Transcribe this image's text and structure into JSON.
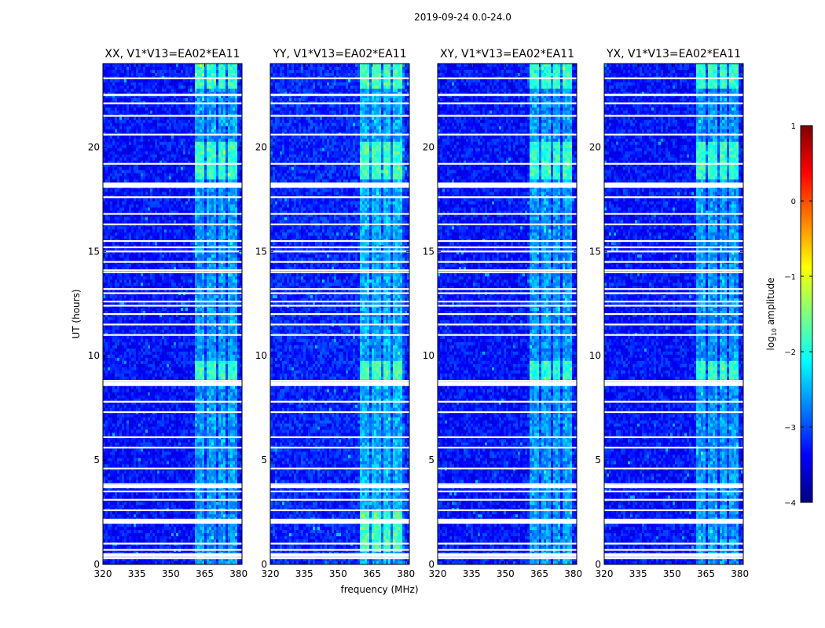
{
  "figure_title": "2019-09-24 0.0-24.0",
  "shared_xlabel": "frequency (MHz)",
  "shared_ylabel": "UT (hours)",
  "colorbar": {
    "label_text": "log10 amplitude",
    "label_prefix": "log",
    "label_subscript": "10",
    "label_suffix": " amplitude",
    "range": [
      -4,
      1
    ],
    "ticks": [
      1,
      0,
      -1,
      -2,
      -3,
      -4
    ],
    "tick_labels": [
      "1",
      "0",
      "−1",
      "−2",
      "−3",
      "−4"
    ],
    "colormap": "jet",
    "colormap_stops": [
      "#00007f",
      "#0000ff",
      "#007fff",
      "#00ffff",
      "#7fff7f",
      "#ffff00",
      "#ff7f00",
      "#ff0000",
      "#7f0000"
    ]
  },
  "colors": {
    "background": "#00007f",
    "baseline": "#1a3cff",
    "rfi_band": "#3fd0ff",
    "strong_rfi": "#8cff80",
    "flagged": "#ffffff"
  },
  "chart_data": [
    {
      "type": "heatmap",
      "title": "XX, V1*V13=EA02*EA11",
      "xlabel": "",
      "ylabel": "UT (hours)",
      "xlim": [
        320,
        381.5
      ],
      "ylim": [
        0,
        24
      ],
      "xticks": [
        320,
        335,
        350,
        365,
        380
      ],
      "yticks": [
        0,
        5,
        10,
        15,
        20
      ],
      "tick_labels_x": [
        "320",
        "335",
        "350",
        "365",
        "380"
      ],
      "tick_labels_y": [
        "0",
        "5",
        "10",
        "15",
        "20"
      ],
      "value_range_log10": [
        -4,
        1
      ],
      "typical_log10_amplitude": -3.3,
      "rfi_band_mhz": [
        361,
        379
      ],
      "strong_rfi_hours": [
        [
          8.8,
          9.8
        ],
        [
          18.5,
          20.2
        ],
        [
          22.8,
          24
        ]
      ],
      "flagged_hours": [
        0.3,
        0.5,
        0.7,
        1.0,
        2.0,
        2.15,
        2.6,
        3.1,
        3.5,
        3.75,
        3.85,
        4.6,
        5.6,
        6.1,
        7.3,
        7.8,
        8.6,
        8.7,
        8.8,
        11.0,
        11.5,
        12.0,
        12.4,
        12.6,
        13.0,
        13.2,
        14.0,
        14.1,
        14.5,
        15.0,
        15.2,
        15.5,
        16.3,
        16.8,
        17.6,
        18.1,
        18.25,
        19.2,
        20.6,
        21.5,
        22.1,
        22.5,
        23.3
      ]
    },
    {
      "type": "heatmap",
      "title": "YY, V1*V13=EA02*EA11",
      "xlabel": "frequency (MHz)",
      "ylabel": "",
      "xlim": [
        320,
        381.5
      ],
      "ylim": [
        0,
        24
      ],
      "xticks": [
        320,
        335,
        350,
        365,
        380
      ],
      "yticks": [
        0,
        5,
        10,
        15,
        20
      ],
      "tick_labels_x": [
        "320",
        "335",
        "350",
        "365",
        "380"
      ],
      "tick_labels_y": [
        "0",
        "5",
        "10",
        "15",
        "20"
      ],
      "value_range_log10": [
        -4,
        1
      ],
      "typical_log10_amplitude": -3.2,
      "rfi_band_mhz": [
        360,
        379
      ],
      "strong_rfi_hours": [
        [
          8.8,
          9.8
        ],
        [
          18.5,
          20.2
        ],
        [
          22.8,
          24
        ],
        [
          0.6,
          2.5
        ]
      ],
      "flagged_hours": [
        0.3,
        0.5,
        0.7,
        1.0,
        2.0,
        2.15,
        2.6,
        3.1,
        3.5,
        3.75,
        3.85,
        4.6,
        5.6,
        6.1,
        7.3,
        7.8,
        8.6,
        8.7,
        8.8,
        11.0,
        11.5,
        12.0,
        12.4,
        12.6,
        13.0,
        13.2,
        14.0,
        14.1,
        14.5,
        15.0,
        15.2,
        15.5,
        16.3,
        16.8,
        17.6,
        18.1,
        18.25,
        19.2,
        20.6,
        21.5,
        22.1,
        22.5,
        23.3
      ]
    },
    {
      "type": "heatmap",
      "title": "XY, V1*V13=EA02*EA11",
      "xlabel": "",
      "ylabel": "",
      "xlim": [
        320,
        381.5
      ],
      "ylim": [
        0,
        24
      ],
      "xticks": [
        320,
        335,
        350,
        365,
        380
      ],
      "yticks": [
        0,
        5,
        10,
        15,
        20
      ],
      "tick_labels_x": [
        "320",
        "335",
        "350",
        "365",
        "380"
      ],
      "tick_labels_y": [
        "0",
        "5",
        "10",
        "15",
        "20"
      ],
      "value_range_log10": [
        -4,
        1
      ],
      "typical_log10_amplitude": -3.3,
      "rfi_band_mhz": [
        361,
        379
      ],
      "strong_rfi_hours": [
        [
          8.8,
          9.8
        ],
        [
          18.5,
          20.2
        ],
        [
          22.8,
          24
        ]
      ],
      "flagged_hours": [
        0.3,
        0.5,
        0.7,
        1.0,
        2.0,
        2.15,
        2.6,
        3.1,
        3.5,
        3.75,
        3.85,
        4.6,
        5.6,
        6.1,
        7.3,
        7.8,
        8.6,
        8.7,
        8.8,
        11.0,
        11.5,
        12.0,
        12.4,
        12.6,
        13.0,
        13.2,
        14.0,
        14.1,
        14.5,
        15.0,
        15.2,
        15.5,
        16.3,
        16.8,
        17.6,
        18.1,
        18.25,
        19.2,
        20.6,
        21.5,
        22.1,
        22.5,
        23.3
      ]
    },
    {
      "type": "heatmap",
      "title": "YX, V1*V13=EA02*EA11",
      "xlabel": "",
      "ylabel": "",
      "xlim": [
        320,
        381.5
      ],
      "ylim": [
        0,
        24
      ],
      "xticks": [
        320,
        335,
        350,
        365,
        380
      ],
      "yticks": [
        0,
        5,
        10,
        15,
        20
      ],
      "tick_labels_x": [
        "320",
        "335",
        "350",
        "365",
        "380"
      ],
      "tick_labels_y": [
        "0",
        "5",
        "10",
        "15",
        "20"
      ],
      "value_range_log10": [
        -4,
        1
      ],
      "typical_log10_amplitude": -3.3,
      "rfi_band_mhz": [
        361,
        379
      ],
      "strong_rfi_hours": [
        [
          8.8,
          9.8
        ],
        [
          18.5,
          20.2
        ],
        [
          22.8,
          24
        ]
      ],
      "flagged_hours": [
        0.3,
        0.5,
        0.7,
        1.0,
        2.0,
        2.15,
        2.6,
        3.1,
        3.5,
        3.75,
        3.85,
        4.6,
        5.6,
        6.1,
        7.3,
        7.8,
        8.6,
        8.7,
        8.8,
        11.0,
        11.5,
        12.0,
        12.4,
        12.6,
        13.0,
        13.2,
        14.0,
        14.1,
        14.5,
        15.0,
        15.2,
        15.5,
        16.3,
        16.8,
        17.6,
        18.1,
        18.25,
        19.2,
        20.6,
        21.5,
        22.1,
        22.5,
        23.3
      ]
    }
  ]
}
